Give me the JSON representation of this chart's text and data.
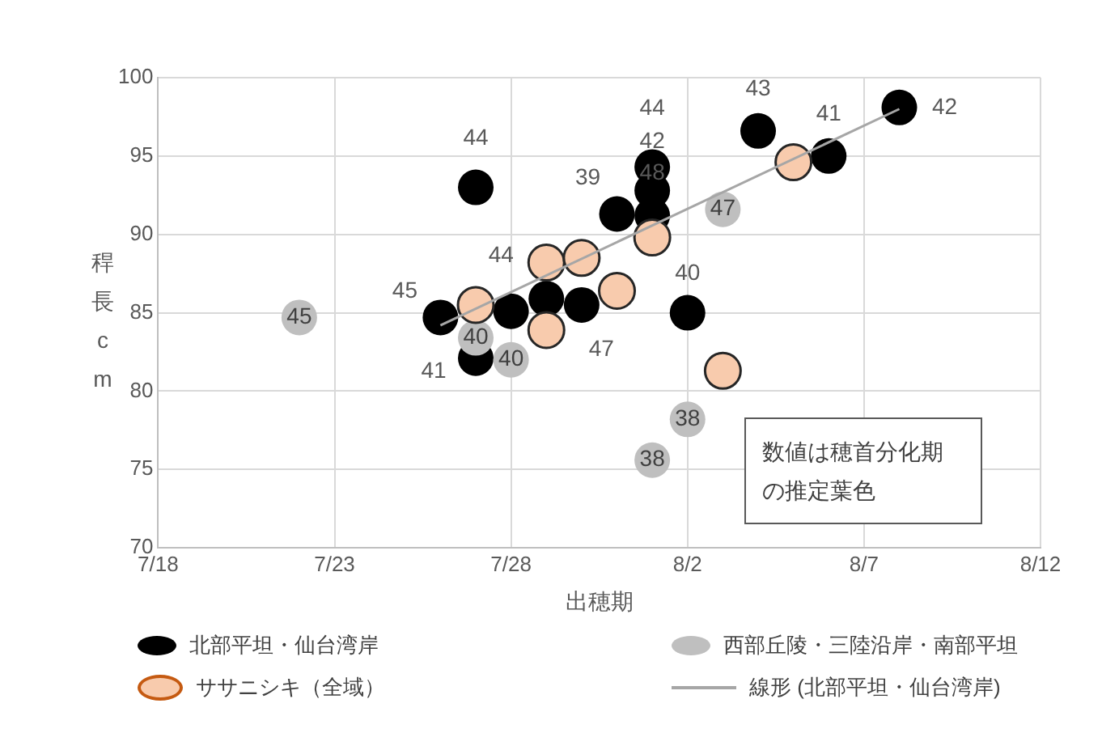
{
  "chart_data": {
    "type": "scatter",
    "xlabel": "出穂期",
    "ylabel": "稈長cm",
    "xlim": [
      "--07-18",
      "--08-12"
    ],
    "xticks": [
      {
        "value": "--07-18",
        "label": "7/18"
      },
      {
        "value": "--07-23",
        "label": "7/23"
      },
      {
        "value": "--07-28",
        "label": "7/28"
      },
      {
        "value": "--08-02",
        "label": "8/2"
      },
      {
        "value": "--08-07",
        "label": "8/7"
      },
      {
        "value": "--08-12",
        "label": "8/12"
      }
    ],
    "ylim": [
      70,
      100
    ],
    "yticks": [
      70,
      75,
      80,
      85,
      90,
      95,
      100
    ],
    "grid": true,
    "legend": "bottom",
    "marker": "circle",
    "annotations": [
      "数値は穂首分化期の推定葉色",
      {
        "text": "45",
        "x": "--07-26",
        "y": 84.7
      },
      {
        "text": "44",
        "x": "--07-27",
        "y": 93.0
      },
      {
        "text": "41",
        "x": "--07-27",
        "y": 82.1
      },
      {
        "text": "39",
        "x": "--07-31",
        "y": 91.3
      },
      {
        "text": "44",
        "x": "--08-01",
        "y": 94.3
      },
      {
        "text": "42",
        "x": "--08-01",
        "y": 92.8
      },
      {
        "text": "48",
        "x": "--08-01",
        "y": 91.2
      },
      {
        "text": "40",
        "x": "--08-02",
        "y": 85.0
      },
      {
        "text": "43",
        "x": "--08-04",
        "y": 96.6
      },
      {
        "text": "41",
        "x": "--08-06",
        "y": 95.0
      },
      {
        "text": "42",
        "x": "--08-08",
        "y": 98.1
      },
      {
        "text": "45",
        "x": "--07-22",
        "y": 84.7
      },
      {
        "text": "40",
        "x": "--07-27",
        "y": 83.4
      },
      {
        "text": "40",
        "x": "--07-28",
        "y": 82.0
      },
      {
        "text": "47",
        "x": "--07-29",
        "y": 83.9
      },
      {
        "text": "38",
        "x": "--08-01",
        "y": 75.6
      },
      {
        "text": "38",
        "x": "--08-02",
        "y": 78.2
      },
      {
        "text": "47",
        "x": "--08-03",
        "y": 91.6
      },
      {
        "text": "44",
        "x": "--07-29",
        "y": 88.2
      }
    ],
    "series": [
      {
        "name": "北部平坦・仙台湾岸",
        "color": "#000000",
        "x": [
          "--07-26",
          "--07-27",
          "--07-27",
          "--07-28",
          "--07-29",
          "--07-30",
          "--07-31",
          "--08-01",
          "--08-01",
          "--08-01",
          "--08-02",
          "--08-04",
          "--08-06",
          "--08-08"
        ],
        "values": [
          84.7,
          93.0,
          82.1,
          85.1,
          85.9,
          85.5,
          91.3,
          94.3,
          92.8,
          91.2,
          85.0,
          96.6,
          95.0,
          98.1
        ]
      },
      {
        "name": "西部丘陵・三陸沿岸・南部平坦",
        "color": "#bfbfbf",
        "x": [
          "--07-22",
          "--07-27",
          "--07-28",
          "--08-01",
          "--08-02",
          "--08-03"
        ],
        "values": [
          84.7,
          83.4,
          82.0,
          75.6,
          78.2,
          91.6
        ]
      },
      {
        "name": "ササニシキ（全域）",
        "color": "#f8cbad",
        "x": [
          "--07-27",
          "--07-29",
          "--07-29",
          "--07-30",
          "--07-31",
          "--08-01",
          "--08-03",
          "--08-05"
        ],
        "values": [
          85.5,
          88.2,
          83.9,
          88.5,
          86.4,
          89.8,
          81.3,
          94.6
        ]
      },
      {
        "name": "線形 (北部平坦・仙台湾岸)",
        "type": "line",
        "color": "#a6a6a6",
        "marker": "none",
        "x": [
          "--07-26",
          "--08-08"
        ],
        "values": [
          84.2,
          98.0
        ]
      }
    ]
  }
}
